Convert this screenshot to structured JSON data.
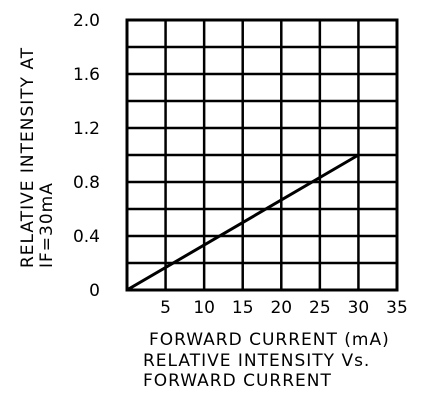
{
  "chart_data": {
    "type": "line",
    "title": "",
    "xlabel": "FORWARD  CURRENT  (mA)",
    "ylabel": [
      "RELATIVE  INTENSITY  AT",
      "IF=30mA"
    ],
    "caption": [
      "RELATIVE   INTENSITY  Vs.",
      "FORWARD  CURRENT"
    ],
    "xlim": [
      0,
      35
    ],
    "ylim": [
      0,
      2.0
    ],
    "x_ticks": [
      "5",
      "10",
      "15",
      "20",
      "25",
      "30",
      "35"
    ],
    "y_ticks": [
      "2.0",
      "1.6",
      "1.2",
      "0.8",
      "0.4",
      "0"
    ],
    "grid": true,
    "series": [
      {
        "x": [
          0,
          30
        ],
        "values": [
          0,
          1.0
        ]
      }
    ]
  }
}
